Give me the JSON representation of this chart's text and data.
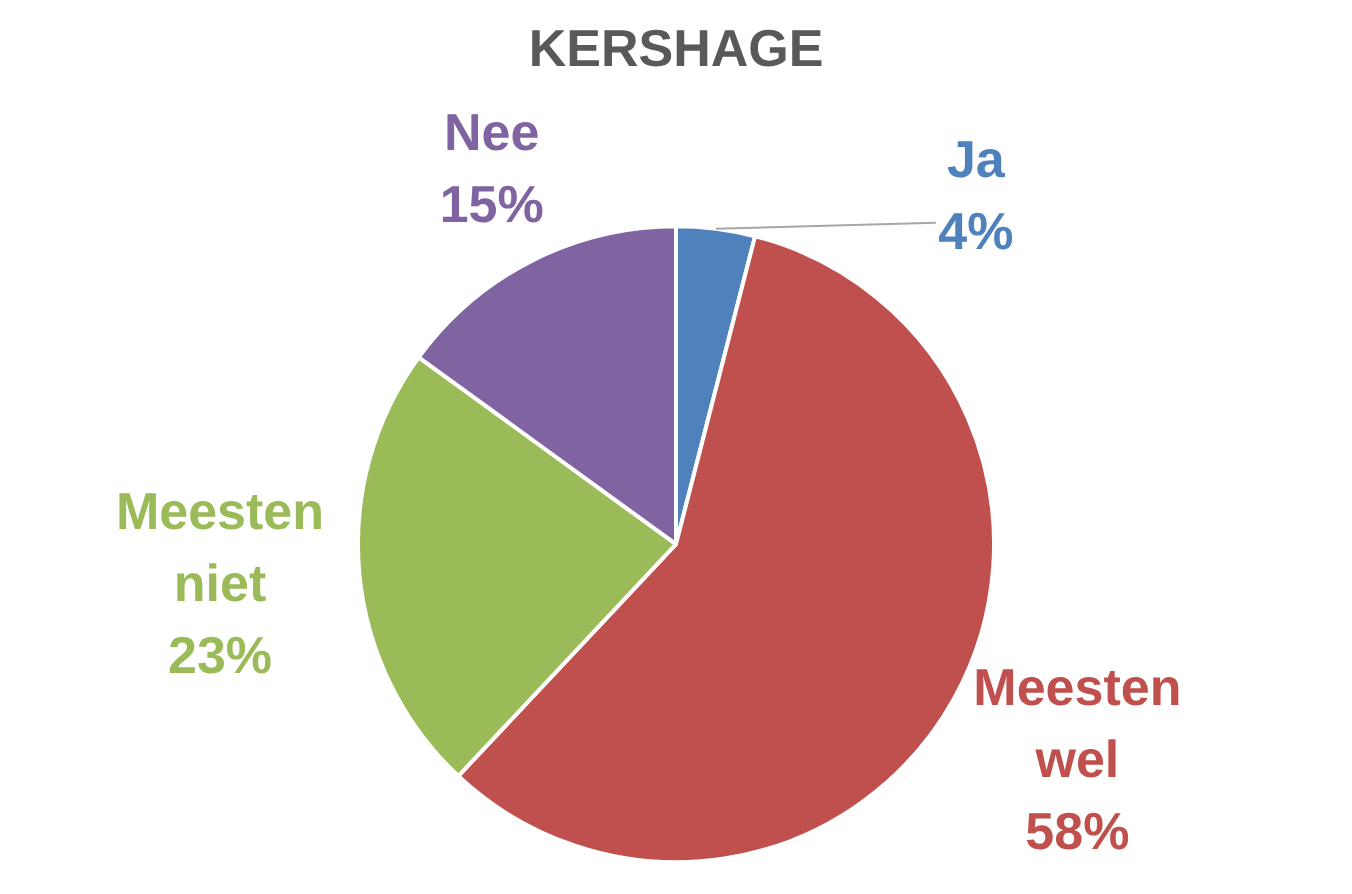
{
  "chart_data": {
    "type": "pie",
    "title": "KERSHAGE",
    "categories": [
      "Ja",
      "Meesten wel",
      "Meesten niet",
      "Nee"
    ],
    "values": [
      4,
      58,
      23,
      15
    ],
    "colors": [
      "#4f81bd",
      "#c0504d",
      "#9bbb59",
      "#8064a2"
    ],
    "value_labels": [
      "4%",
      "58%",
      "23%",
      "15%"
    ],
    "legend": false
  }
}
